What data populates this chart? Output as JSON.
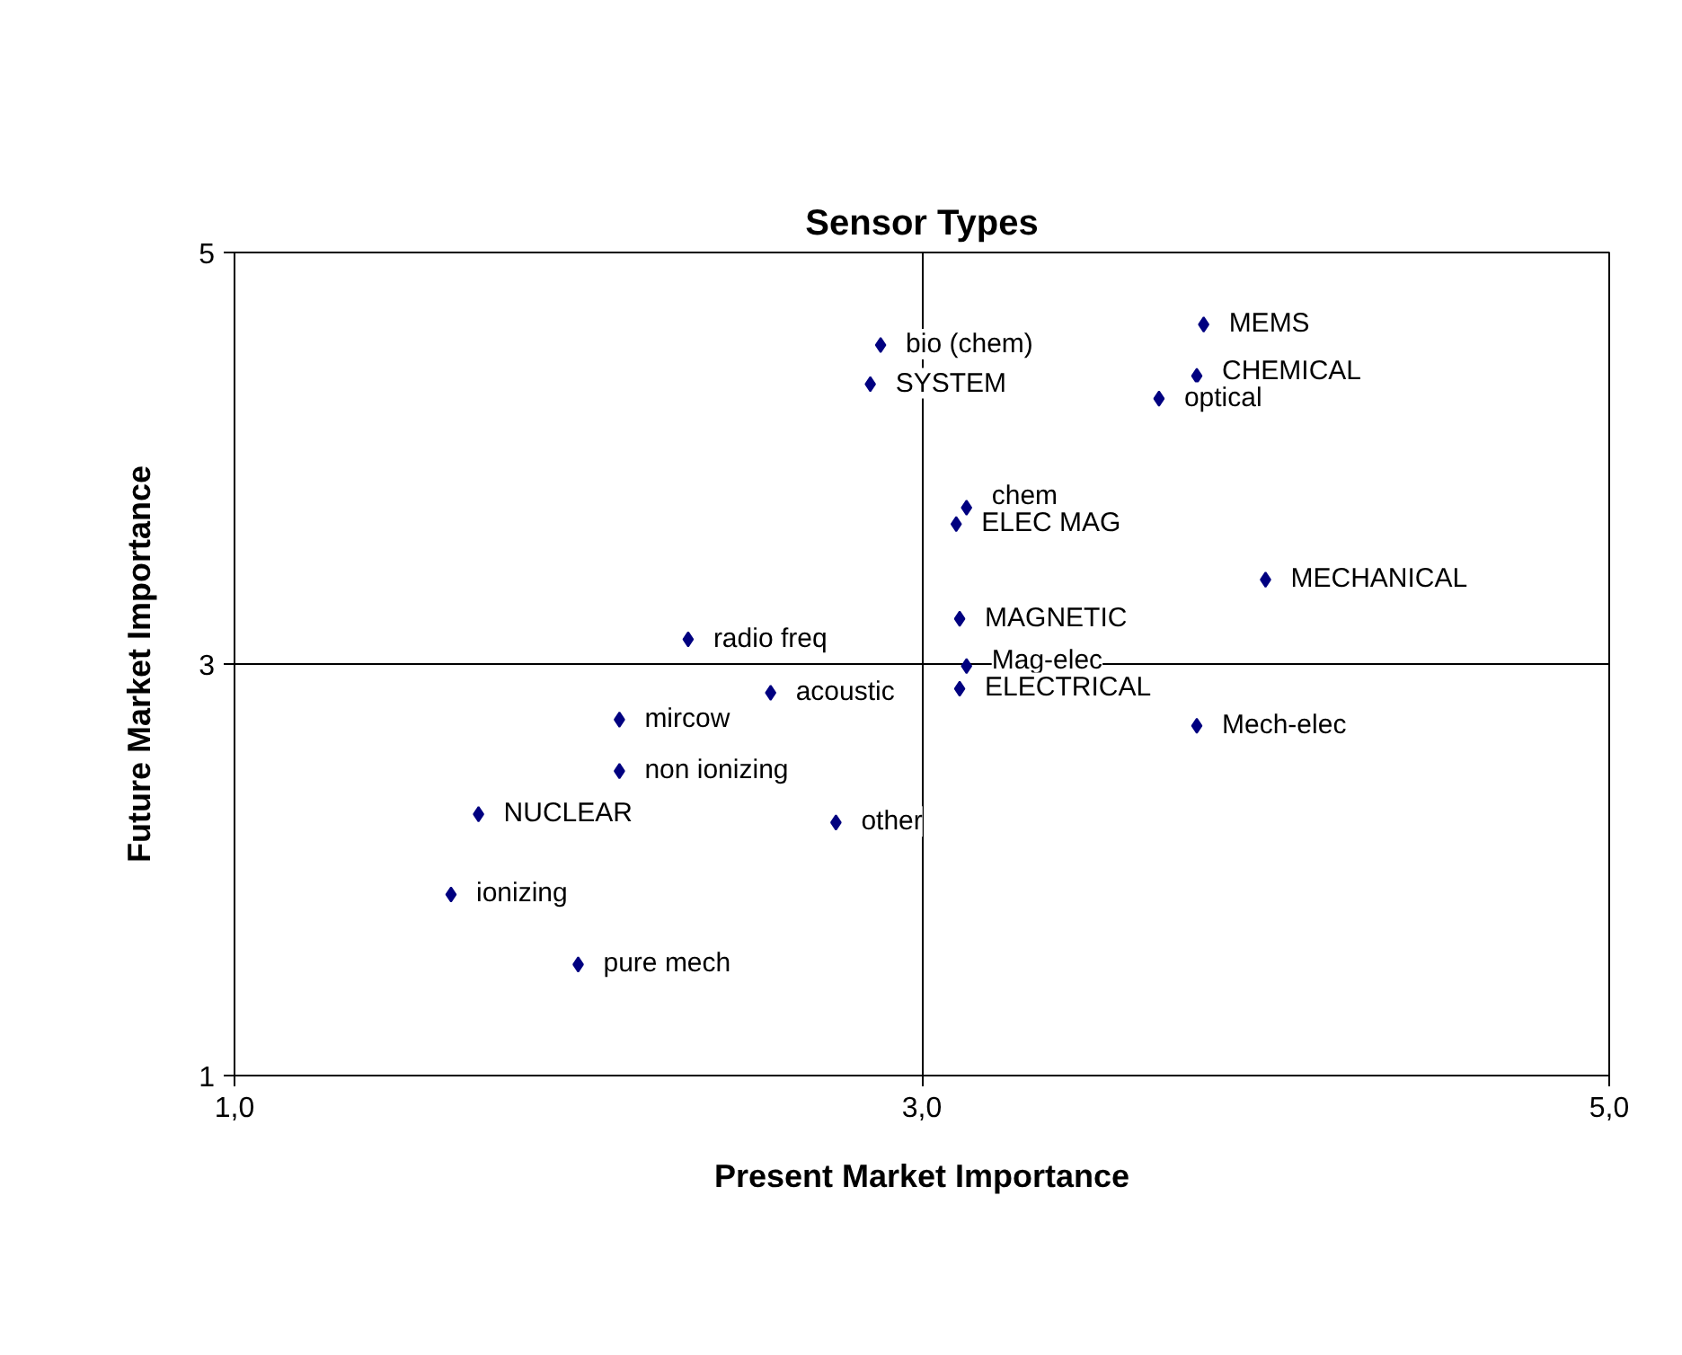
{
  "chart_data": {
    "type": "scatter",
    "title": "Sensor Types",
    "xlabel": "Present Market Importance",
    "ylabel": "Future Market Importance",
    "x": [
      2.88,
      2.85,
      3.82,
      3.8,
      3.69,
      3.13,
      3.1,
      4.0,
      3.11,
      3.13,
      3.11,
      3.8,
      2.32,
      2.56,
      2.12,
      2.12,
      1.71,
      2.75,
      1.63,
      2.0
    ],
    "series": [
      {
        "color": "#000080",
        "values": [
          4.55,
          4.36,
          4.65,
          4.4,
          4.29,
          3.76,
          3.68,
          3.41,
          3.22,
          2.99,
          2.88,
          2.7,
          3.12,
          2.86,
          2.73,
          2.48,
          2.27,
          2.23,
          1.88,
          1.54
        ],
        "value_labels": [
          "bio (chem)",
          "SYSTEM",
          "MEMS",
          "CHEMICAL",
          "optical",
          "chem",
          "ELEC MAG",
          "MECHANICAL",
          "MAGNETIC",
          "Mag-elec",
          "ELECTRICAL",
          "Mech-elec",
          "radio freq",
          "acoustic",
          "mircow",
          "non ionizing",
          "NUCLEAR",
          "other",
          "ionizing",
          "pure mech"
        ]
      }
    ],
    "xlim": [
      1,
      5
    ],
    "ylim": [
      1,
      5
    ],
    "xticks": [
      {
        "value": 1,
        "label": "1,0"
      },
      {
        "value": 3,
        "label": "3,0"
      },
      {
        "value": 5,
        "label": "5,0"
      }
    ],
    "yticks": [
      1,
      3,
      5
    ],
    "grid": true,
    "marker": "diamond"
  }
}
